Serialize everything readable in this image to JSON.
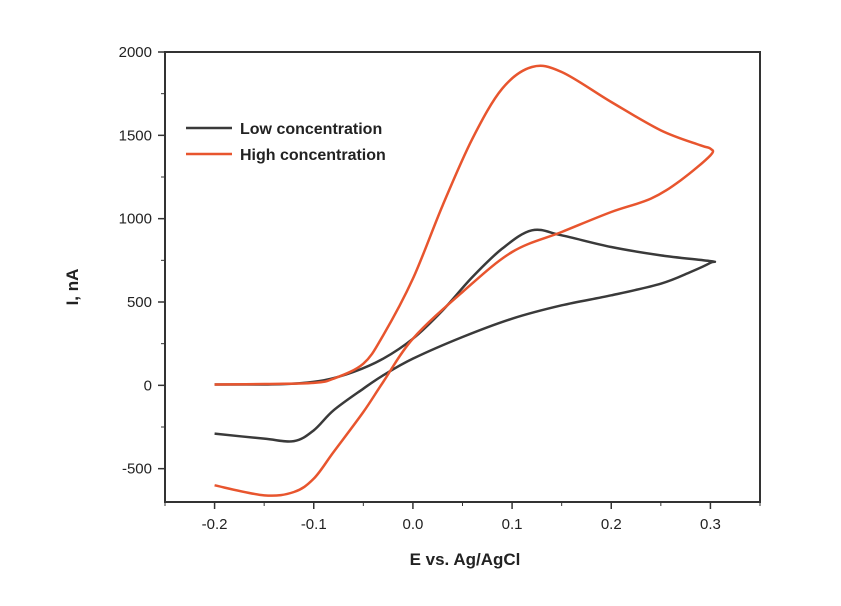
{
  "chart_data": {
    "type": "line",
    "title": "",
    "xlabel": "E vs. Ag/AgCl",
    "ylabel": "I, nA",
    "xlim": [
      -0.25,
      0.35
    ],
    "ylim": [
      -700,
      2000
    ],
    "x_ticks": [
      -0.2,
      -0.1,
      0.0,
      0.1,
      0.2,
      0.3
    ],
    "x_tick_labels": [
      "-0.2",
      "-0.1",
      "0.0",
      "0.1",
      "0.2",
      "0.3"
    ],
    "y_ticks": [
      -500,
      0,
      500,
      1000,
      1500,
      2000
    ],
    "y_tick_labels": [
      "-500",
      "0",
      "500",
      "1000",
      "1500",
      "2000"
    ],
    "grid": false,
    "legend_position": "top-left",
    "series": [
      {
        "name": "Low concentration",
        "color": "#3a3a3a",
        "points": [
          [
            -0.2,
            5
          ],
          [
            -0.15,
            5
          ],
          [
            -0.12,
            10
          ],
          [
            -0.09,
            30
          ],
          [
            -0.06,
            80
          ],
          [
            -0.03,
            160
          ],
          [
            0.0,
            280
          ],
          [
            0.03,
            450
          ],
          [
            0.06,
            650
          ],
          [
            0.09,
            820
          ],
          [
            0.12,
            930
          ],
          [
            0.15,
            900
          ],
          [
            0.2,
            830
          ],
          [
            0.25,
            780
          ],
          [
            0.3,
            745
          ],
          [
            0.3,
            735
          ],
          [
            0.28,
            680
          ],
          [
            0.25,
            610
          ],
          [
            0.2,
            540
          ],
          [
            0.15,
            480
          ],
          [
            0.1,
            400
          ],
          [
            0.05,
            290
          ],
          [
            0.0,
            160
          ],
          [
            -0.03,
            60
          ],
          [
            -0.05,
            -20
          ],
          [
            -0.08,
            -150
          ],
          [
            -0.1,
            -270
          ],
          [
            -0.12,
            -335
          ],
          [
            -0.15,
            -320
          ],
          [
            -0.2,
            -290
          ]
        ]
      },
      {
        "name": "High concentration",
        "color": "#e8552e",
        "points": [
          [
            -0.2,
            5
          ],
          [
            -0.15,
            8
          ],
          [
            -0.1,
            15
          ],
          [
            -0.08,
            40
          ],
          [
            -0.05,
            130
          ],
          [
            -0.03,
            300
          ],
          [
            0.0,
            640
          ],
          [
            0.03,
            1080
          ],
          [
            0.06,
            1480
          ],
          [
            0.09,
            1780
          ],
          [
            0.12,
            1910
          ],
          [
            0.15,
            1880
          ],
          [
            0.2,
            1700
          ],
          [
            0.25,
            1530
          ],
          [
            0.29,
            1440
          ],
          [
            0.3,
            1420
          ],
          [
            0.3,
            1380
          ],
          [
            0.27,
            1230
          ],
          [
            0.24,
            1120
          ],
          [
            0.2,
            1040
          ],
          [
            0.15,
            920
          ],
          [
            0.1,
            800
          ],
          [
            0.05,
            560
          ],
          [
            0.0,
            280
          ],
          [
            -0.03,
            20
          ],
          [
            -0.05,
            -160
          ],
          [
            -0.08,
            -400
          ],
          [
            -0.1,
            -560
          ],
          [
            -0.12,
            -640
          ],
          [
            -0.15,
            -660
          ],
          [
            -0.2,
            -600
          ]
        ]
      }
    ]
  }
}
